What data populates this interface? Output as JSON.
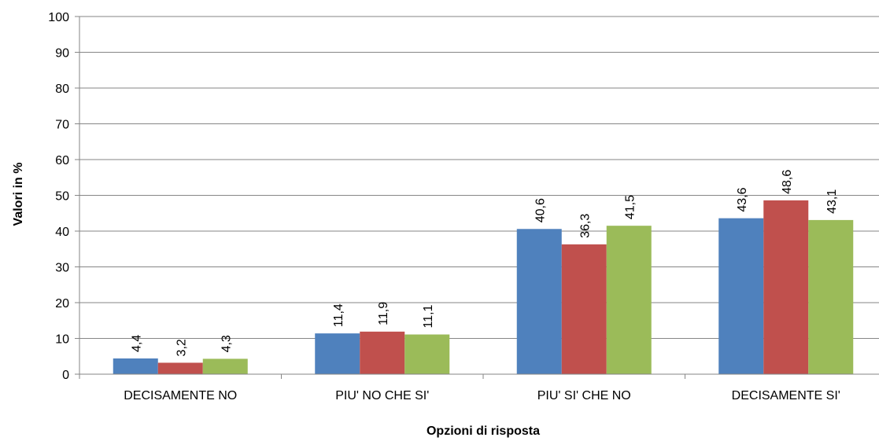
{
  "chart_data": {
    "type": "bar",
    "title": "",
    "xlabel": "Opzioni di risposta",
    "ylabel": "Valori in %",
    "ylim": [
      0,
      100
    ],
    "yticks": [
      0,
      10,
      20,
      30,
      40,
      50,
      60,
      70,
      80,
      90,
      100
    ],
    "grid": true,
    "legend": "none",
    "categories": [
      "DECISAMENTE NO",
      "PIU' NO CHE SI'",
      "PIU' SI' CHE NO",
      "DECISAMENTE SI'"
    ],
    "series": [
      {
        "color": "#4F81BD",
        "values": [
          4.4,
          11.4,
          40.6,
          43.6
        ],
        "labels": [
          "4,4",
          "11,4",
          "40,6",
          "43,6"
        ]
      },
      {
        "color": "#C0504D",
        "values": [
          3.2,
          11.9,
          36.3,
          48.6
        ],
        "labels": [
          "3,2",
          "11,9",
          "36,3",
          "48,6"
        ]
      },
      {
        "color": "#9BBB59",
        "values": [
          4.3,
          11.1,
          41.5,
          43.1
        ],
        "labels": [
          "4,3",
          "11,1",
          "41,5",
          "43,1"
        ]
      }
    ]
  }
}
